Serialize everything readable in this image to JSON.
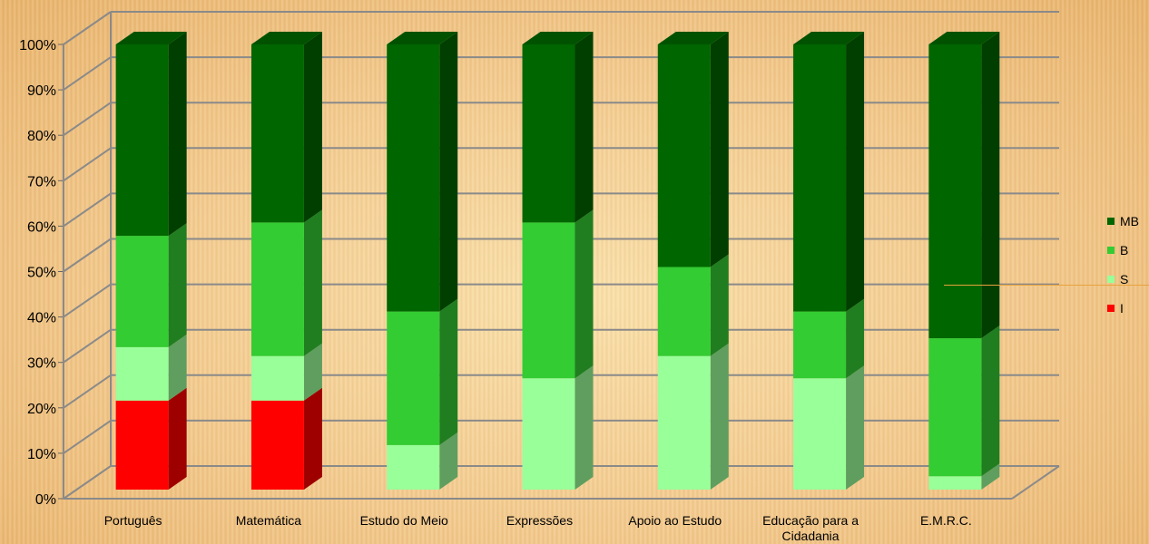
{
  "chart_data": {
    "type": "bar",
    "stacked": true,
    "percent_scale": true,
    "title": "",
    "xlabel": "",
    "ylabel": "",
    "ylim": [
      0,
      100
    ],
    "yticks": [
      "0%",
      "10%",
      "20%",
      "30%",
      "40%",
      "50%",
      "60%",
      "70%",
      "80%",
      "90%",
      "100%"
    ],
    "categories": [
      "Português",
      "Matemática",
      "Estudo do Meio",
      "Expressões",
      "Apoio ao Estudo",
      "Educação para a Cidadania",
      "E.M.R.C."
    ],
    "series": [
      {
        "name": "I",
        "color": "#ff0000",
        "values": [
          20,
          20,
          0,
          0,
          0,
          0,
          0
        ]
      },
      {
        "name": "S",
        "color": "#99ff99",
        "values": [
          12,
          10,
          10,
          25,
          30,
          25,
          3
        ]
      },
      {
        "name": "B",
        "color": "#33cc33",
        "values": [
          25,
          30,
          30,
          35,
          20,
          15,
          31
        ]
      },
      {
        "name": "MB",
        "color": "#006600",
        "values": [
          43,
          40,
          60,
          40,
          50,
          60,
          66
        ]
      }
    ],
    "legend_order": [
      "MB",
      "B",
      "S",
      "I"
    ],
    "legend_position": "right",
    "grid": true
  }
}
